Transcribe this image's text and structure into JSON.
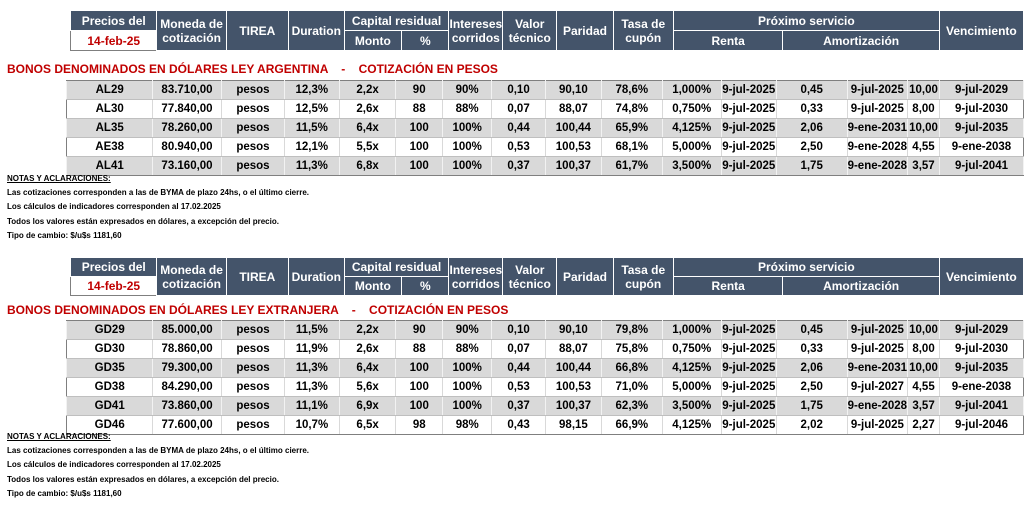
{
  "header": {
    "precios_del": "Precios del",
    "date": "14-feb-25",
    "moneda": "Moneda de cotización",
    "tirea": "TIREA",
    "duration": "Duration",
    "capital_residual": "Capital residual",
    "monto": "Monto",
    "pct": "%",
    "intereses": "Intereses corridos",
    "valor": "Valor técnico",
    "paridad": "Paridad",
    "tasa": "Tasa de cupón",
    "proximo": "Próximo servicio",
    "renta": "Renta",
    "amortizacion": "Amortización",
    "vencimiento": "Vencimiento"
  },
  "sections": [
    {
      "title": "BONOS DENOMINADOS EN DÓLARES LEY ARGENTINA    -    COTIZACIÓN EN PESOS",
      "rows": [
        [
          "AL29",
          "83.710,00",
          "pesos",
          "12,3%",
          "2,2x",
          "90",
          "90%",
          "0,10",
          "90,10",
          "78,6%",
          "1,000%",
          "9-jul-2025",
          "0,45",
          "9-jul-2025",
          "10,00",
          "9-jul-2029"
        ],
        [
          "AL30",
          "77.840,00",
          "pesos",
          "12,5%",
          "2,6x",
          "88",
          "88%",
          "0,07",
          "88,07",
          "74,8%",
          "0,750%",
          "9-jul-2025",
          "0,33",
          "9-jul-2025",
          "8,00",
          "9-jul-2030"
        ],
        [
          "AL35",
          "78.260,00",
          "pesos",
          "11,5%",
          "6,4x",
          "100",
          "100%",
          "0,44",
          "100,44",
          "65,9%",
          "4,125%",
          "9-jul-2025",
          "2,06",
          "9-ene-2031",
          "10,00",
          "9-jul-2035"
        ],
        [
          "AE38",
          "80.940,00",
          "pesos",
          "12,1%",
          "5,5x",
          "100",
          "100%",
          "0,53",
          "100,53",
          "68,1%",
          "5,000%",
          "9-jul-2025",
          "2,50",
          "9-ene-2028",
          "4,55",
          "9-ene-2038"
        ],
        [
          "AL41",
          "73.160,00",
          "pesos",
          "11,3%",
          "6,8x",
          "100",
          "100%",
          "0,37",
          "100,37",
          "61,7%",
          "3,500%",
          "9-jul-2025",
          "1,75",
          "9-ene-2028",
          "3,57",
          "9-jul-2041"
        ]
      ],
      "notes": {
        "heading": "NOTAS Y ACLARACIONES:",
        "lines": [
          "Las cotizaciones corresponden a las de BYMA de plazo 24hs, o el último cierre.",
          "Los cálculos de indicadores corresponden al 17.02.2025",
          "Todos los valores están expresados en dólares, a excepción del precio.",
          "Tipo de cambio: $/u$s 1181,60"
        ]
      }
    },
    {
      "title": "BONOS DENOMINADOS EN DÓLARES LEY EXTRANJERA    -    COTIZACIÓN EN PESOS",
      "rows": [
        [
          "GD29",
          "85.000,00",
          "pesos",
          "11,5%",
          "2,2x",
          "90",
          "90%",
          "0,10",
          "90,10",
          "79,8%",
          "1,000%",
          "9-jul-2025",
          "0,45",
          "9-jul-2025",
          "10,00",
          "9-jul-2029"
        ],
        [
          "GD30",
          "78.860,00",
          "pesos",
          "11,9%",
          "2,6x",
          "88",
          "88%",
          "0,07",
          "88,07",
          "75,8%",
          "0,750%",
          "9-jul-2025",
          "0,33",
          "9-jul-2025",
          "8,00",
          "9-jul-2030"
        ],
        [
          "GD35",
          "79.300,00",
          "pesos",
          "11,3%",
          "6,4x",
          "100",
          "100%",
          "0,44",
          "100,44",
          "66,8%",
          "4,125%",
          "9-jul-2025",
          "2,06",
          "9-ene-2031",
          "10,00",
          "9-jul-2035"
        ],
        [
          "GD38",
          "84.290,00",
          "pesos",
          "11,3%",
          "5,6x",
          "100",
          "100%",
          "0,53",
          "100,53",
          "71,0%",
          "5,000%",
          "9-jul-2025",
          "2,50",
          "9-jul-2027",
          "4,55",
          "9-ene-2038"
        ],
        [
          "GD41",
          "73.860,00",
          "pesos",
          "11,1%",
          "6,9x",
          "100",
          "100%",
          "0,37",
          "100,37",
          "62,3%",
          "3,500%",
          "9-jul-2025",
          "1,75",
          "9-ene-2028",
          "3,57",
          "9-jul-2041"
        ],
        [
          "GD46",
          "77.600,00",
          "pesos",
          "10,7%",
          "6,5x",
          "98",
          "98%",
          "0,43",
          "98,15",
          "66,9%",
          "4,125%",
          "9-jul-2025",
          "2,02",
          "9-jul-2025",
          "2,27",
          "9-jul-2046"
        ]
      ],
      "notes": {
        "heading": "NOTAS Y ACLARACIONES:",
        "lines": [
          "Las cotizaciones corresponden a las de BYMA de plazo 24hs, o el último cierre.",
          "Los cálculos de indicadores corresponden al 17.02.2025",
          "Todos los valores están expresados en dólares, a excepción del precio.",
          "Tipo de cambio: $/u$s 1181,60"
        ]
      }
    }
  ]
}
